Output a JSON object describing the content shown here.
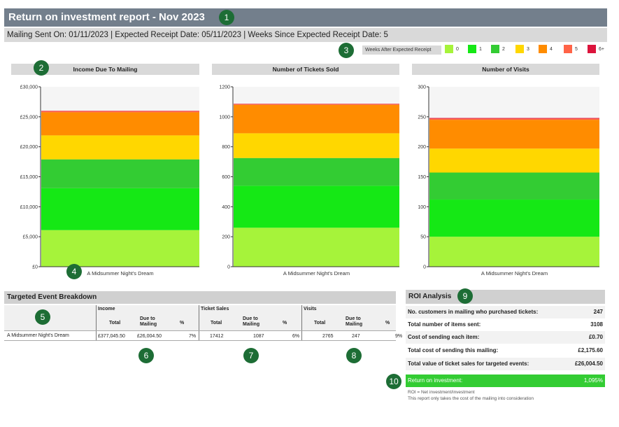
{
  "header": {
    "title": "Return on investment report  - Nov 2023",
    "subtitle": "Mailing Sent On: 01/11/2023 | Expected Receipt Date: 05/11/2023 | Weeks Since Expected Receipt Date: 5"
  },
  "badges": [
    "1",
    "2",
    "3",
    "4",
    "5",
    "6",
    "7",
    "8",
    "9",
    "10"
  ],
  "legend": {
    "title": "Weeks After Expected Receipt",
    "items": [
      {
        "label": "0",
        "color": "#a6f33a"
      },
      {
        "label": "1",
        "color": "#15e815"
      },
      {
        "label": "2",
        "color": "#33cc33"
      },
      {
        "label": "3",
        "color": "#ffd700"
      },
      {
        "label": "4",
        "color": "#ff8c00"
      },
      {
        "label": "5",
        "color": "#ff6347"
      },
      {
        "label": "6+",
        "color": "#dc143c"
      }
    ]
  },
  "chart_data": [
    {
      "type": "bar",
      "title": "Income Due To Mailing",
      "categories": [
        "A Midsummer Night's Dream"
      ],
      "ylim": [
        0,
        30000
      ],
      "yticks": [
        "£0",
        "£5,000",
        "£10,000",
        "£15,000",
        "£20,000",
        "£25,000",
        "£30,000"
      ],
      "ytick_values": [
        0,
        5000,
        10000,
        15000,
        20000,
        25000,
        30000
      ],
      "series": [
        {
          "name": "0",
          "values": [
            6100
          ]
        },
        {
          "name": "1",
          "values": [
            7000
          ]
        },
        {
          "name": "2",
          "values": [
            4800
          ]
        },
        {
          "name": "3",
          "values": [
            4000
          ]
        },
        {
          "name": "4",
          "values": [
            3850
          ]
        },
        {
          "name": "5",
          "values": [
            200
          ]
        },
        {
          "name": "6+",
          "values": [
            50
          ]
        }
      ]
    },
    {
      "type": "bar",
      "title": "Number of Tickets Sold",
      "categories": [
        "A Midsummer Night's Dream"
      ],
      "ylim": [
        0,
        1200
      ],
      "yticks": [
        "0",
        "200",
        "400",
        "600",
        "800",
        "1000",
        "1200"
      ],
      "ytick_values": [
        0,
        200,
        400,
        600,
        800,
        1000,
        1200
      ],
      "series": [
        {
          "name": "0",
          "values": [
            260
          ]
        },
        {
          "name": "1",
          "values": [
            280
          ]
        },
        {
          "name": "2",
          "values": [
            185
          ]
        },
        {
          "name": "3",
          "values": [
            165
          ]
        },
        {
          "name": "4",
          "values": [
            190
          ]
        },
        {
          "name": "5",
          "values": [
            5
          ]
        },
        {
          "name": "6+",
          "values": [
            2
          ]
        }
      ]
    },
    {
      "type": "bar",
      "title": "Number of Visits",
      "categories": [
        "A Midsummer Night's Dream"
      ],
      "ylim": [
        0,
        300
      ],
      "yticks": [
        "0",
        "50",
        "100",
        "150",
        "200",
        "250",
        "300"
      ],
      "ytick_values": [
        0,
        50,
        100,
        150,
        200,
        250,
        300
      ],
      "series": [
        {
          "name": "0",
          "values": [
            50
          ]
        },
        {
          "name": "1",
          "values": [
            62
          ]
        },
        {
          "name": "2",
          "values": [
            45
          ]
        },
        {
          "name": "3",
          "values": [
            40
          ]
        },
        {
          "name": "4",
          "values": [
            48
          ]
        },
        {
          "name": "5",
          "values": [
            2
          ]
        },
        {
          "name": "6+",
          "values": [
            1
          ]
        }
      ]
    }
  ],
  "breakdown": {
    "title": "Targeted Event Breakdown",
    "groups": [
      "Income",
      "Ticket Sales",
      "Visits"
    ],
    "subheaders": [
      "Total",
      "Due to Mailing",
      "%"
    ],
    "rows": [
      {
        "event": "A Midsummer Night's Dream",
        "income_total": "£377,045.50",
        "income_due": "£26,004.50",
        "income_pct": "7%",
        "tickets_total": "17412",
        "tickets_due": "1087",
        "tickets_pct": "6%",
        "visits_total": "2765",
        "visits_due": "247",
        "visits_pct": "9%"
      }
    ]
  },
  "roi": {
    "title": "ROI Analysis",
    "rows": [
      {
        "label": "No. customers in mailing who purchased tickets:",
        "value": "247"
      },
      {
        "label": "Total number of items sent:",
        "value": "3108"
      },
      {
        "label": "Cost of sending each item:",
        "value": "£0.70"
      },
      {
        "label": "Total cost of sending this mailing:",
        "value": "£2,175.60"
      },
      {
        "label": "Total value of ticket sales for targeted events:",
        "value": "£26,004.50"
      }
    ],
    "return_label": "Return on investment:",
    "return_value": "1,095%",
    "note1": "ROI = Net investment/investment",
    "note2": "This report only takes the cost of the mailing into consideration"
  }
}
